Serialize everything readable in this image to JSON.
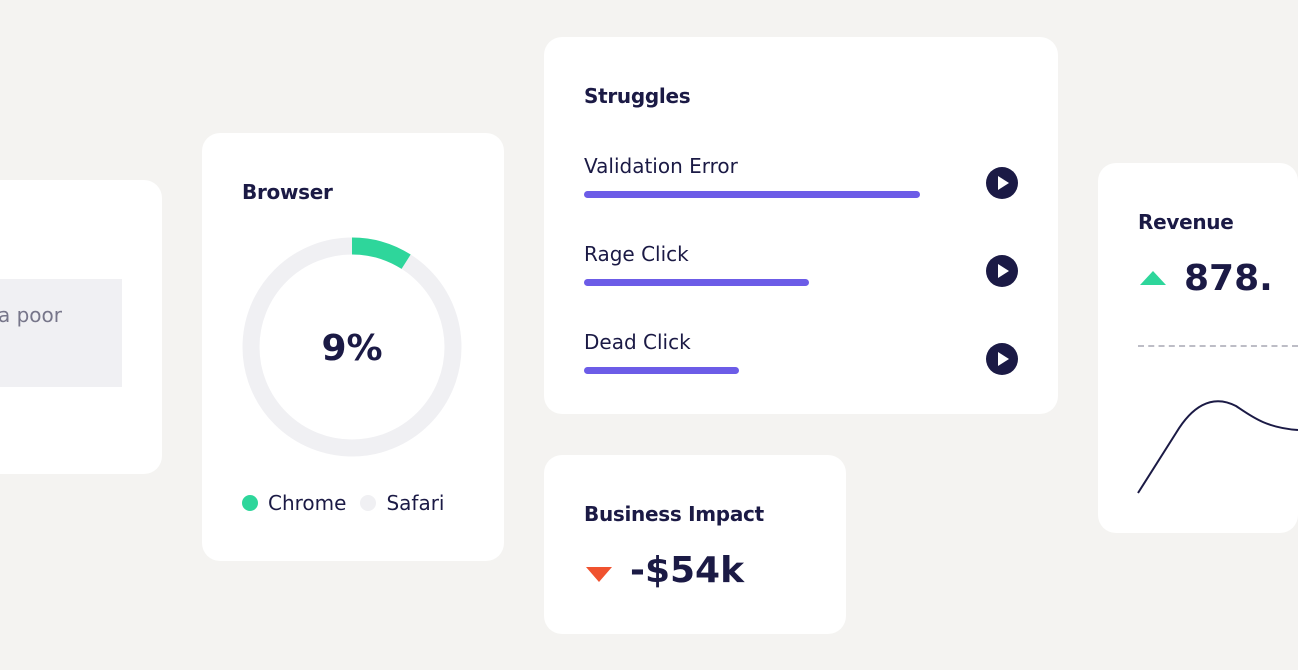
{
  "left_card": {
    "text": "a poor"
  },
  "browser": {
    "title": "Browser",
    "percent": 9,
    "percent_label": "9%",
    "legend": [
      {
        "label": "Chrome",
        "color": "#2ed69b"
      },
      {
        "label": "Safari",
        "color": "#f0f0f3"
      }
    ]
  },
  "struggles": {
    "title": "Struggles",
    "items": [
      {
        "label": "Validation Error",
        "fraction": 1.0
      },
      {
        "label": "Rage Click",
        "fraction": 0.67
      },
      {
        "label": "Dead Click",
        "fraction": 0.46
      }
    ]
  },
  "impact": {
    "title": "Business Impact",
    "value": "-$54k",
    "trend": "down",
    "color": "#f0522f"
  },
  "revenue": {
    "title": "Revenue",
    "value": "878.",
    "trend": "up",
    "color": "#2ed69b"
  }
}
